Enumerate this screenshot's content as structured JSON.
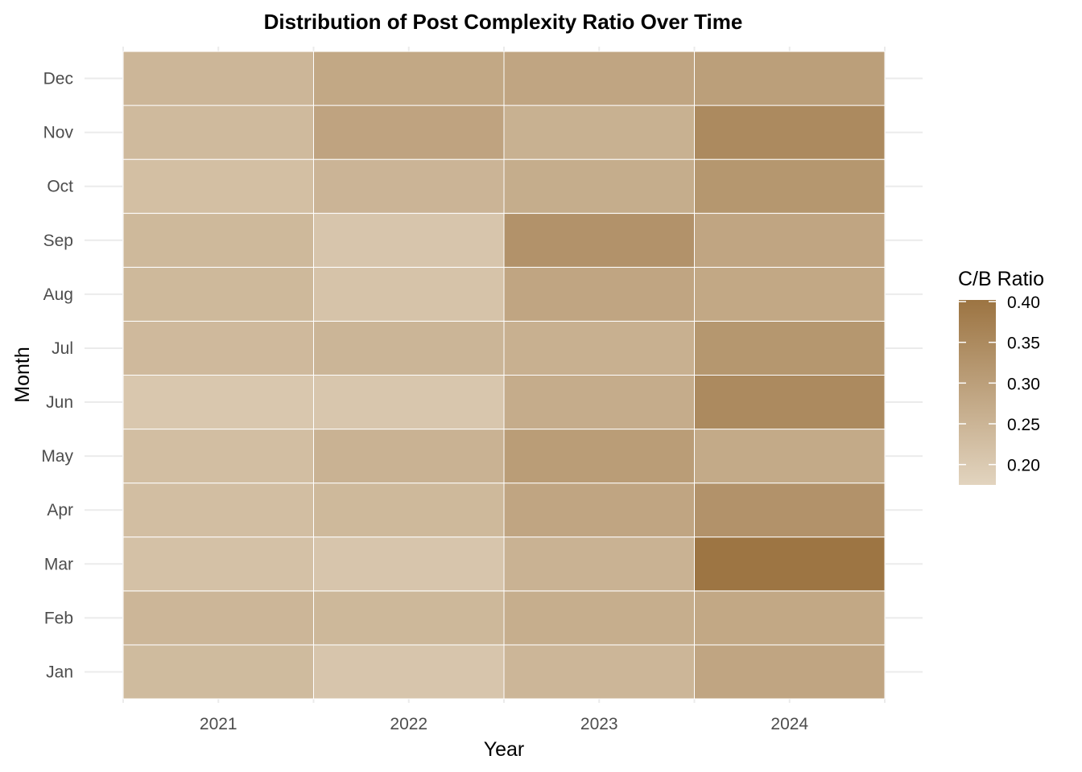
{
  "chart_data": {
    "type": "heatmap",
    "title": "Distribution of Post Complexity Ratio Over Time",
    "xlabel": "Year",
    "ylabel": "Month",
    "x_categories": [
      "2021",
      "2022",
      "2023",
      "2024"
    ],
    "y_categories": [
      "Jan",
      "Feb",
      "Mar",
      "Apr",
      "May",
      "Jun",
      "Jul",
      "Aug",
      "Sep",
      "Oct",
      "Nov",
      "Dec"
    ],
    "values": {
      "2021": [
        0.235,
        0.245,
        0.22,
        0.228,
        0.228,
        0.205,
        0.238,
        0.24,
        0.24,
        0.225,
        0.237,
        0.245
      ],
      "2022": [
        0.21,
        0.242,
        0.21,
        0.24,
        0.255,
        0.208,
        0.248,
        0.215,
        0.21,
        0.25,
        0.29,
        0.28
      ],
      "2023": [
        0.245,
        0.265,
        0.255,
        0.285,
        0.305,
        0.27,
        0.26,
        0.285,
        0.33,
        0.268,
        0.258,
        0.285
      ],
      "2024": [
        0.285,
        0.28,
        0.4,
        0.33,
        0.275,
        0.35,
        0.32,
        0.28,
        0.285,
        0.32,
        0.35,
        0.3
      ]
    },
    "color_scale": {
      "title": "C/B Ratio",
      "low_color": "#e2d4bf",
      "high_color": "#9c7442",
      "min": 0.175,
      "max": 0.402,
      "ticks": [
        0.2,
        0.25,
        0.3,
        0.35,
        0.4
      ],
      "tick_labels": [
        "0.20",
        "0.25",
        "0.30",
        "0.35",
        "0.40"
      ]
    },
    "grid": true,
    "legend_position": "right"
  }
}
